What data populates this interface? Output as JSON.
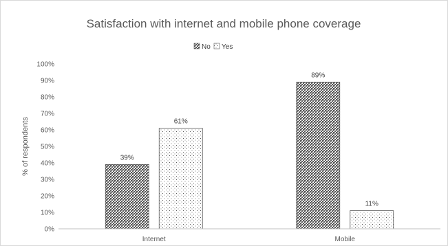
{
  "chart_data": {
    "type": "bar",
    "title": "Satisfaction with internet and mobile phone coverage",
    "categories": [
      "Internet",
      "Mobile"
    ],
    "series": [
      {
        "name": "No",
        "values": [
          39,
          89
        ],
        "labels": [
          "39%",
          "89%"
        ],
        "pattern": "dark-checker",
        "color": "#595959"
      },
      {
        "name": "Yes",
        "values": [
          61,
          11
        ],
        "labels": [
          "61%",
          "11%"
        ],
        "pattern": "light-dots",
        "color": "#595959"
      }
    ],
    "ylabel": "% of respondents",
    "xlabel": "",
    "ylim": [
      0,
      100
    ],
    "yticks": [
      "0%",
      "10%",
      "20%",
      "30%",
      "40%",
      "50%",
      "60%",
      "70%",
      "80%",
      "90%",
      "100%"
    ],
    "grid": false,
    "legend_position": "top-center",
    "border_color": "#d9d9d9",
    "axis_color": "#bfbfbf",
    "text_color": "#595959"
  }
}
